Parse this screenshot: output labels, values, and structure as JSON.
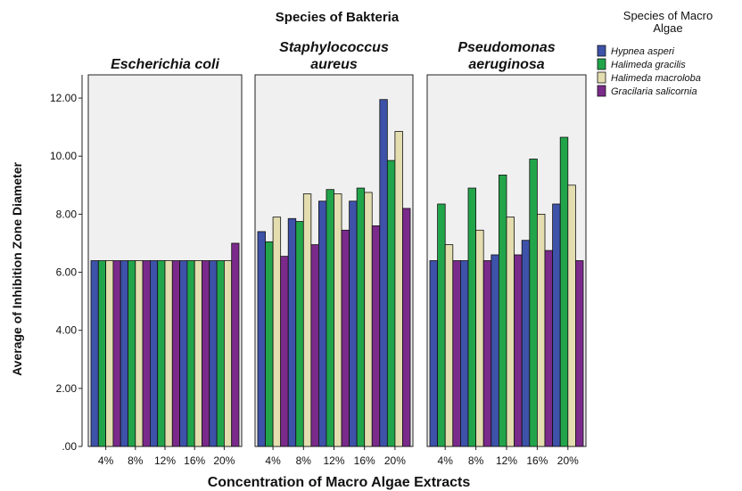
{
  "chart_data": {
    "type": "bar",
    "title": "Species of Bakteria",
    "xlabel": "Concentration of Macro Algae Extracts",
    "ylabel": "Average of Inhibition Zone Diameter",
    "ylim": [
      0,
      12.8
    ],
    "y_ticks": [
      ".00",
      "2.00",
      "4.00",
      "6.00",
      "8.00",
      "10.00",
      "12.00"
    ],
    "y_tick_values": [
      0,
      2,
      4,
      6,
      8,
      10,
      12
    ],
    "categories": [
      "4%",
      "8%",
      "12%",
      "16%",
      "20%"
    ],
    "legend": {
      "title_lines": [
        "Species of Macro",
        "Algae"
      ],
      "placement": "top-right"
    },
    "grid": false,
    "colors": [
      "#3d52a8",
      "#22a54a",
      "#e3ddb0",
      "#7a2a8a"
    ],
    "panels": [
      {
        "title_lines": [
          "Escherichia coli"
        ],
        "series": [
          {
            "name": "Hypnea asperi",
            "values": [
              6.4,
              6.4,
              6.4,
              6.4,
              6.4
            ]
          },
          {
            "name": "Halimeda gracilis",
            "values": [
              6.4,
              6.4,
              6.4,
              6.4,
              6.4
            ]
          },
          {
            "name": "Halimeda macroloba",
            "values": [
              6.4,
              6.4,
              6.4,
              6.4,
              6.4
            ]
          },
          {
            "name": "Gracilaria salicornia",
            "values": [
              6.4,
              6.4,
              6.4,
              6.4,
              7.0
            ]
          }
        ]
      },
      {
        "title_lines": [
          "Staphylococcus",
          "aureus"
        ],
        "series": [
          {
            "name": "Hypnea asperi",
            "values": [
              7.4,
              7.85,
              8.45,
              8.45,
              11.95
            ]
          },
          {
            "name": "Halimeda gracilis",
            "values": [
              7.05,
              7.75,
              8.85,
              8.9,
              9.85
            ]
          },
          {
            "name": "Halimeda macroloba",
            "values": [
              7.9,
              8.7,
              8.7,
              8.75,
              10.85
            ]
          },
          {
            "name": "Gracilaria salicornia",
            "values": [
              6.55,
              6.95,
              7.45,
              7.6,
              8.2
            ]
          }
        ]
      },
      {
        "title_lines": [
          "Pseudomonas",
          "aeruginosa"
        ],
        "series": [
          {
            "name": "Hypnea asperi",
            "values": [
              6.4,
              6.4,
              6.6,
              7.1,
              8.35
            ]
          },
          {
            "name": "Halimeda gracilis",
            "values": [
              8.35,
              8.9,
              9.35,
              9.9,
              10.65
            ]
          },
          {
            "name": "Halimeda macroloba",
            "values": [
              6.95,
              7.45,
              7.9,
              8.0,
              9.0
            ]
          },
          {
            "name": "Gracilaria salicornia",
            "values": [
              6.4,
              6.4,
              6.6,
              6.75,
              6.4
            ]
          }
        ]
      }
    ]
  }
}
